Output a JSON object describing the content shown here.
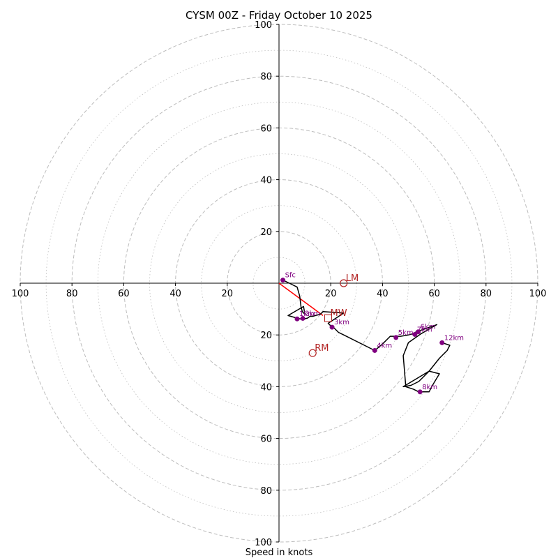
{
  "chart_data": {
    "type": "hodograph",
    "title": "CYSM 00Z - Friday October 10 2025",
    "xlabel": "Speed in knots",
    "ylabel": "",
    "xlim": [
      -100,
      100
    ],
    "ylim": [
      -100,
      100
    ],
    "major_rings": [
      20,
      40,
      60,
      80,
      100
    ],
    "minor_rings": [
      10,
      30,
      50,
      70,
      90
    ],
    "x_ticks": [
      -100,
      -80,
      -60,
      -40,
      -20,
      20,
      40,
      60,
      80,
      100
    ],
    "x_tick_labels": [
      "100",
      "80",
      "60",
      "40",
      "20",
      "20",
      "40",
      "60",
      "80",
      "100"
    ],
    "y_ticks": [
      100,
      80,
      60,
      40,
      20,
      -20,
      -40,
      -60,
      -80,
      -100
    ],
    "y_tick_labels": [
      "100",
      "80",
      "60",
      "40",
      "20",
      "20",
      "40",
      "60",
      "80",
      "100"
    ],
    "grid": true,
    "colors": {
      "ring": "#bdbdbd",
      "trace": "#000000",
      "height_marker": "#800080",
      "motion": "#b22222",
      "shear_vector": "#ff0000"
    },
    "trace": [
      [
        1.5,
        1.2
      ],
      [
        4,
        0
      ],
      [
        7,
        -1.5
      ],
      [
        8,
        -5
      ],
      [
        8.5,
        -9
      ],
      [
        9,
        -11
      ],
      [
        10,
        -12
      ],
      [
        9.5,
        -9
      ],
      [
        3.5,
        -12.5
      ],
      [
        7,
        -13.5
      ],
      [
        9,
        -14
      ],
      [
        11,
        -13.5
      ],
      [
        12,
        -12.8
      ],
      [
        13,
        -12.8
      ],
      [
        16,
        -12
      ],
      [
        17,
        -11
      ],
      [
        25,
        -11.5
      ],
      [
        19,
        -15.5
      ],
      [
        20,
        -16.5
      ],
      [
        21,
        -17
      ],
      [
        23,
        -19
      ],
      [
        25,
        -20
      ],
      [
        37,
        -26
      ],
      [
        40,
        -23.5
      ],
      [
        43,
        -20.5
      ],
      [
        45,
        -20.5
      ],
      [
        47,
        -20.5
      ],
      [
        50,
        -20
      ],
      [
        52,
        -19.5
      ],
      [
        53,
        -18.8
      ],
      [
        56,
        -17.8
      ],
      [
        61,
        -16
      ],
      [
        55,
        -19.5
      ],
      [
        50,
        -23
      ],
      [
        48,
        -28
      ],
      [
        49,
        -40
      ],
      [
        52,
        -41
      ],
      [
        54,
        -42
      ],
      [
        58,
        -42
      ],
      [
        59,
        -40
      ],
      [
        62,
        -35
      ],
      [
        58,
        -34
      ],
      [
        56,
        -36
      ],
      [
        54,
        -38
      ],
      [
        51,
        -39.5
      ],
      [
        48,
        -40
      ],
      [
        58,
        -34
      ],
      [
        62,
        -29
      ],
      [
        65,
        -26
      ],
      [
        66,
        -24
      ],
      [
        63,
        -23
      ]
    ],
    "height_markers": [
      {
        "label": "Sfc",
        "u": 1.5,
        "v": 1.2
      },
      {
        "label": "1km",
        "u": 7,
        "v": -13.8
      },
      {
        "label": "2km",
        "u": 9.2,
        "v": -13.6
      },
      {
        "label": "3km",
        "u": 20.5,
        "v": -17
      },
      {
        "label": "4km",
        "u": 37,
        "v": -26
      },
      {
        "label": "5km",
        "u": 45.2,
        "v": -21
      },
      {
        "label": "6km",
        "u": 53.8,
        "v": -18.8
      },
      {
        "label": "7km",
        "u": 52.5,
        "v": -19.8
      },
      {
        "label": "8km",
        "u": 54.5,
        "v": -42
      },
      {
        "label": "12km",
        "u": 63,
        "v": -23
      }
    ],
    "storm_motion": [
      {
        "label": "LM",
        "u": 25,
        "v": 0
      },
      {
        "label": "RM",
        "u": 13,
        "v": -27
      },
      {
        "label": "MW",
        "u": 19,
        "v": -13.5
      }
    ],
    "shear_vector": {
      "from": [
        0,
        0
      ],
      "to": [
        17,
        -12.5
      ]
    }
  }
}
